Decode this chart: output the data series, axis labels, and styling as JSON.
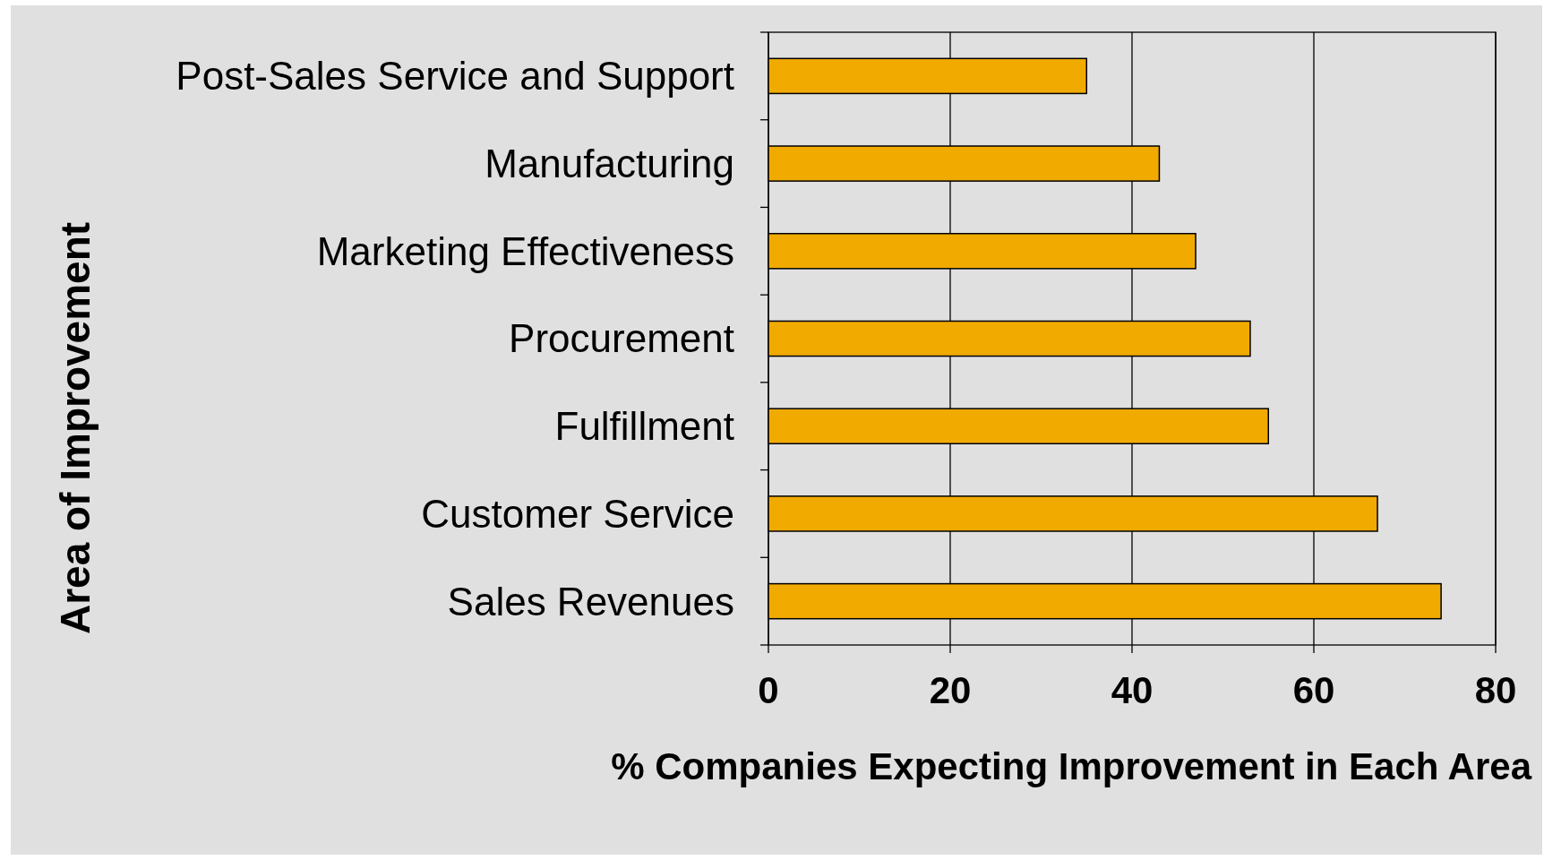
{
  "chart_data": {
    "type": "bar",
    "orientation": "horizontal",
    "xlabel": "% Companies Expecting Improvement in Each Area",
    "ylabel": "Area of Improvement",
    "categories": [
      "Post-Sales Service and Support",
      "Manufacturing",
      "Marketing Effectiveness",
      "Procurement",
      "Fulfillment",
      "Customer Service",
      "Sales Revenues"
    ],
    "values": [
      35,
      43,
      47,
      53,
      55,
      67,
      74
    ],
    "color": "#f0aa00",
    "xlim": [
      0,
      80
    ],
    "xticks": [
      0,
      20,
      40,
      60,
      80
    ],
    "grid": "x"
  }
}
